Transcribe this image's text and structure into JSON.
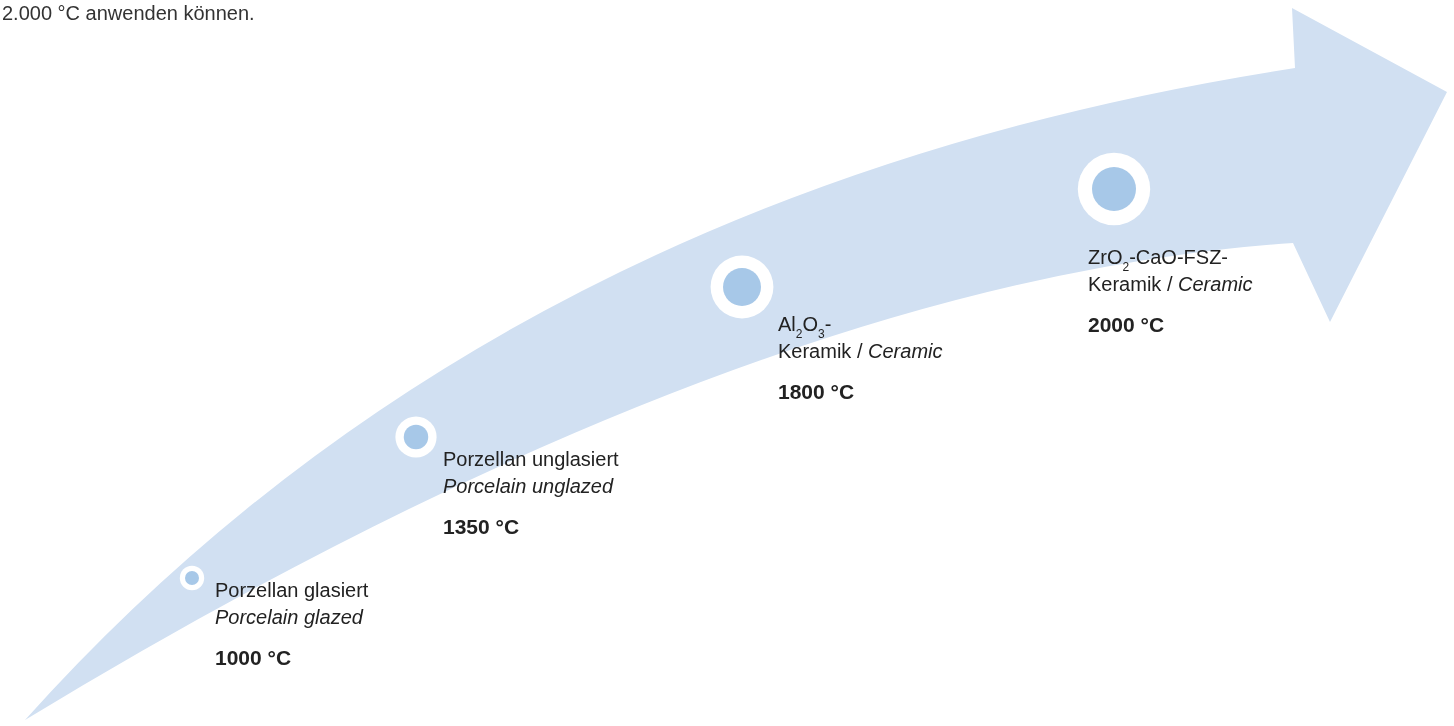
{
  "chart_data": {
    "type": "other",
    "categories": [
      "Porzellan glasiert\nPorcelain glazed",
      "Porzellan unglasiert\nPorcelain unglazed",
      "Al$_{2}$O$_{3}$-\nKeramik / Ceramic",
      "ZrO$_{2}$-CaO-FSZ-\nKeramik / Ceramic"
    ],
    "values": [
      1000,
      1350,
      1800,
      2000
    ],
    "value_labels": [
      "1000 °C",
      "1350 °C",
      "1800 °C",
      "2000 °C"
    ],
    "colors": [
      "#a7c8e8",
      "#a7c8e8",
      "#a7c8e8",
      "#a7c8e8"
    ],
    "annotations": [
      "2.000 °C anwenden können."
    ]
  }
}
